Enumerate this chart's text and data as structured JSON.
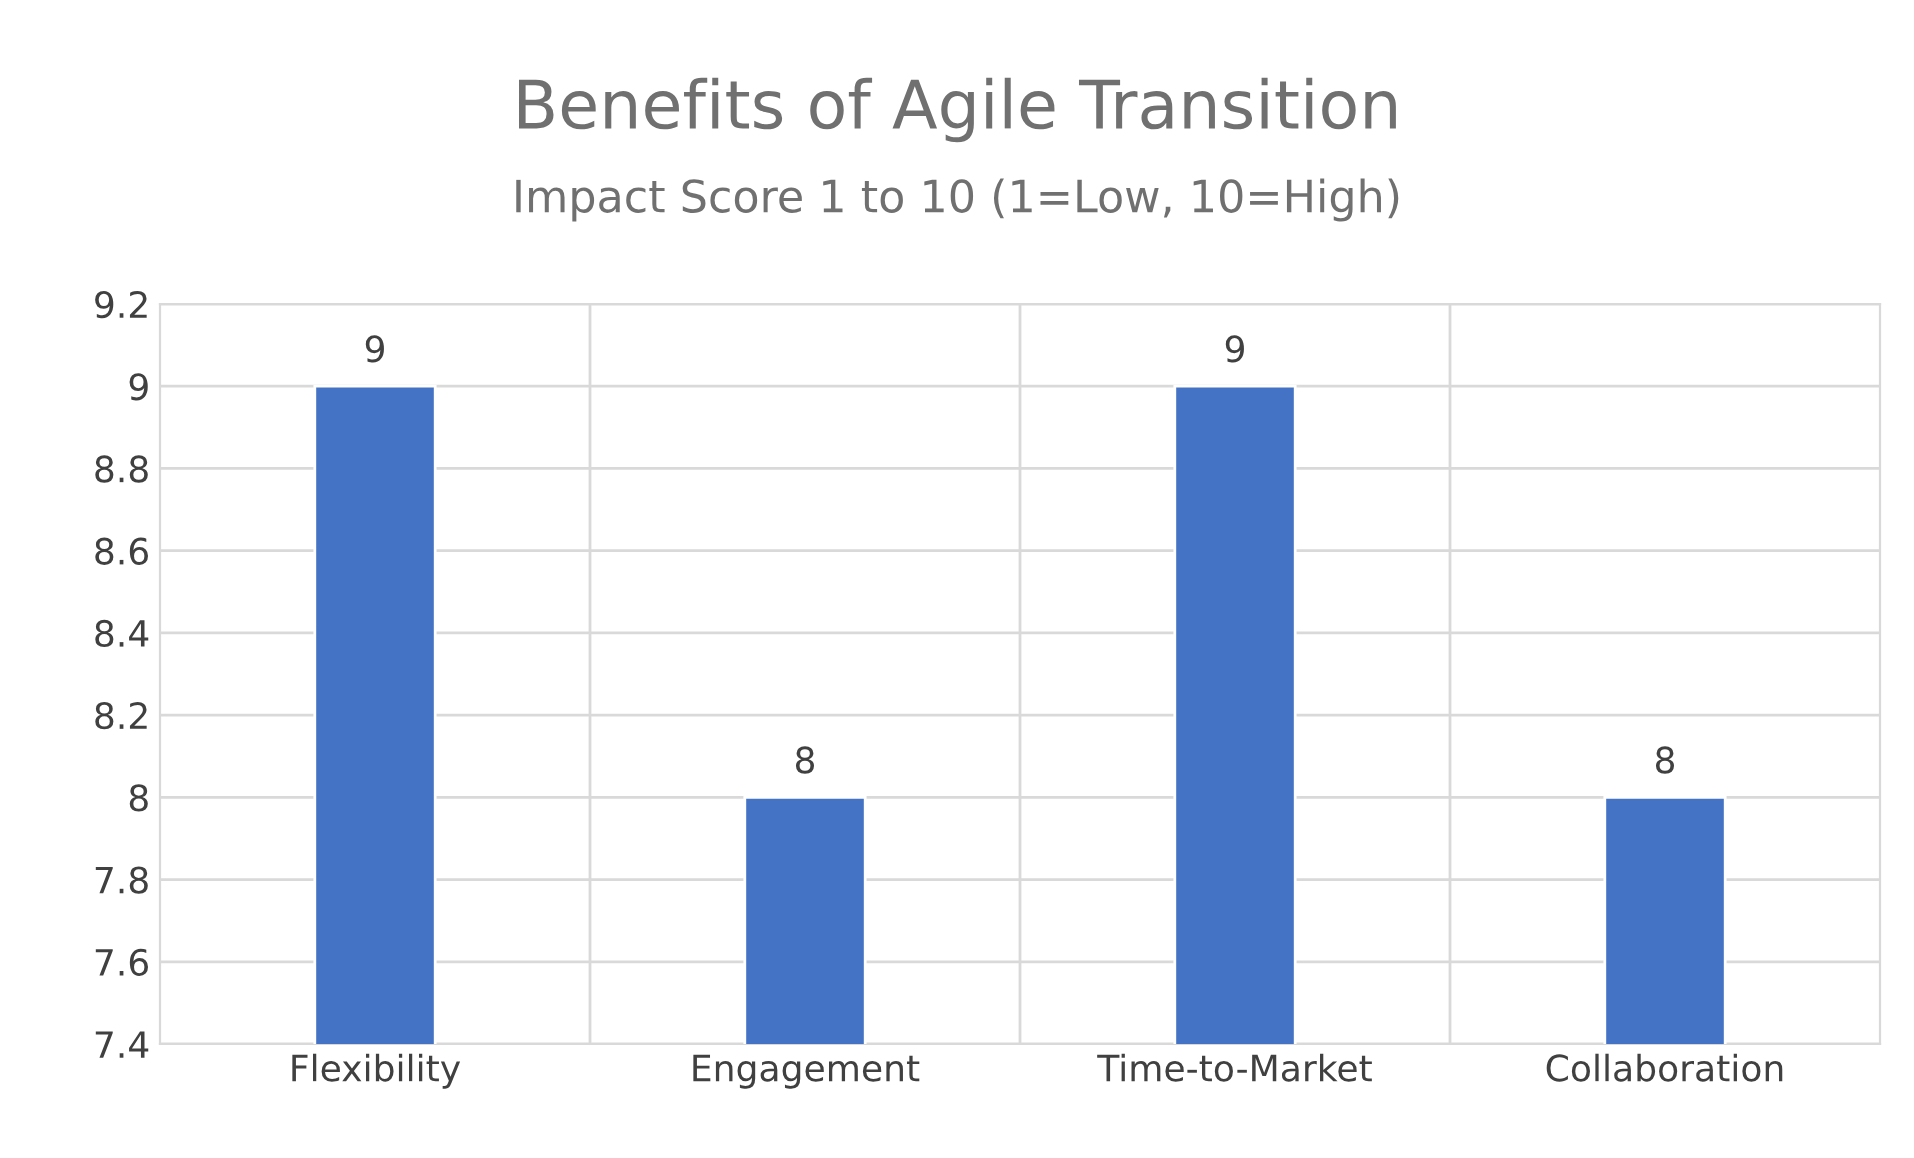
{
  "chart_data": {
    "type": "bar",
    "title": "Benefits of Agile Transition",
    "subtitle": "Impact Score 1 to 10 (1=Low, 10=High)",
    "categories": [
      "Flexibility",
      "Engagement",
      "Time-to-Market",
      "Collaboration"
    ],
    "values": [
      9,
      8,
      9,
      8
    ],
    "color": "#4472c4",
    "ylim": [
      7.4,
      9.2
    ],
    "yticks": [
      7.4,
      7.6,
      7.8,
      8,
      8.2,
      8.4,
      8.6,
      8.8,
      9,
      9.2
    ],
    "grid": true,
    "data_labels": true
  }
}
